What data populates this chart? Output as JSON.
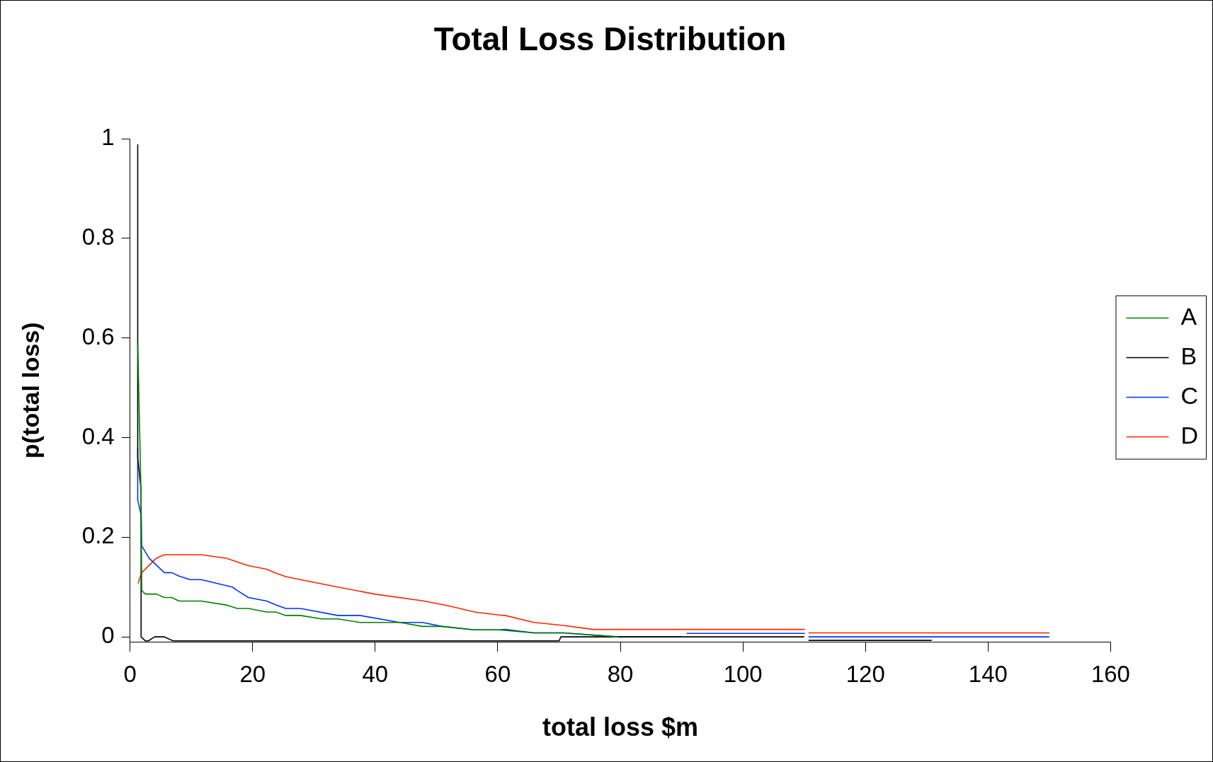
{
  "chart_data": {
    "type": "line",
    "title": "Total Loss Distribution",
    "xlabel": "total loss $m",
    "ylabel": "p(total loss)",
    "xlim": [
      0,
      160
    ],
    "xticks": [
      0,
      20,
      40,
      60,
      80,
      100,
      120,
      140,
      160
    ],
    "ylim": [
      -0.01,
      1
    ],
    "yticks": [
      0,
      0.2,
      0.4,
      0.6,
      0.8,
      1
    ],
    "grid": false,
    "legend": "right",
    "marker": "none",
    "line_style": "solid",
    "series": [
      {
        "name": "A",
        "color": "#008000",
        "x": [
          1.25,
          1.8,
          1.9,
          2.5,
          4.3,
          5.6,
          6.8,
          8,
          11.6,
          15.7,
          17.5,
          19.3,
          22.3,
          23.8,
          25.4,
          27.8,
          31.3,
          33.9,
          37.5,
          44,
          47.7,
          50.9,
          56.2,
          60.2,
          65.9,
          70.7,
          79.6
        ],
        "values": [
          0.59,
          0.28,
          0.093,
          0.086,
          0.086,
          0.079,
          0.079,
          0.072,
          0.072,
          0.064,
          0.057,
          0.057,
          0.05,
          0.05,
          0.043,
          0.043,
          0.036,
          0.036,
          0.029,
          0.029,
          0.021,
          0.021,
          0.014,
          0.014,
          0.008,
          0.008,
          0
        ]
      },
      {
        "name": "B",
        "color": "#000000",
        "x": [
          1.25,
          1.25,
          1.8,
          1.8,
          2.5,
          3,
          4,
          5.6,
          7,
          70,
          70.3,
          110,
          110.4,
          110.7,
          130.8
        ],
        "values": [
          0.988,
          0.36,
          0.295,
          0,
          -0.008,
          -0.008,
          0,
          0,
          -0.008,
          -0.008,
          0,
          0,
          null,
          -0.007,
          -0.007
        ]
      },
      {
        "name": "C",
        "color": "#0033ff",
        "x": [
          1.25,
          1.25,
          1.8,
          1.9,
          3.1,
          5.6,
          6.8,
          8,
          9.8,
          11.6,
          16.7,
          17.5,
          19.3,
          22.3,
          23.8,
          25.4,
          27.8,
          33.9,
          37.5,
          44,
          47.7,
          50.9,
          56.2,
          60.2,
          61.2,
          65.9,
          70.7,
          79.6,
          90,
          90.4,
          90.8,
          110.1,
          110.4,
          110.7,
          150
        ],
        "values": [
          0.38,
          0.275,
          0.245,
          0.183,
          0.158,
          0.129,
          0.129,
          0.122,
          0.115,
          0.115,
          0.1,
          0.093,
          0.079,
          0.072,
          0.064,
          0.057,
          0.057,
          0.043,
          0.043,
          0.029,
          0.029,
          0.021,
          0.014,
          0.014,
          0.015,
          0.008,
          0.008,
          0,
          0,
          null,
          0.007,
          0.007,
          null,
          0,
          0
        ]
      },
      {
        "name": "D",
        "color": "#ff2200",
        "x": [
          1.3,
          1.9,
          4.3,
          5.6,
          11.6,
          15.7,
          19.3,
          22.3,
          23.8,
          25.4,
          27.8,
          33.9,
          39.9,
          48,
          52.1,
          56.2,
          60.2,
          61.2,
          65.9,
          70.7,
          75.6,
          110.1,
          110.4,
          110.7,
          150
        ],
        "values": [
          0.107,
          0.129,
          0.158,
          0.165,
          0.165,
          0.158,
          0.143,
          0.136,
          0.128,
          0.121,
          0.115,
          0.1,
          0.086,
          0.072,
          0.062,
          0.05,
          0.044,
          0.043,
          0.029,
          0.023,
          0.015,
          0.015,
          null,
          0.008,
          0.008
        ]
      }
    ]
  }
}
